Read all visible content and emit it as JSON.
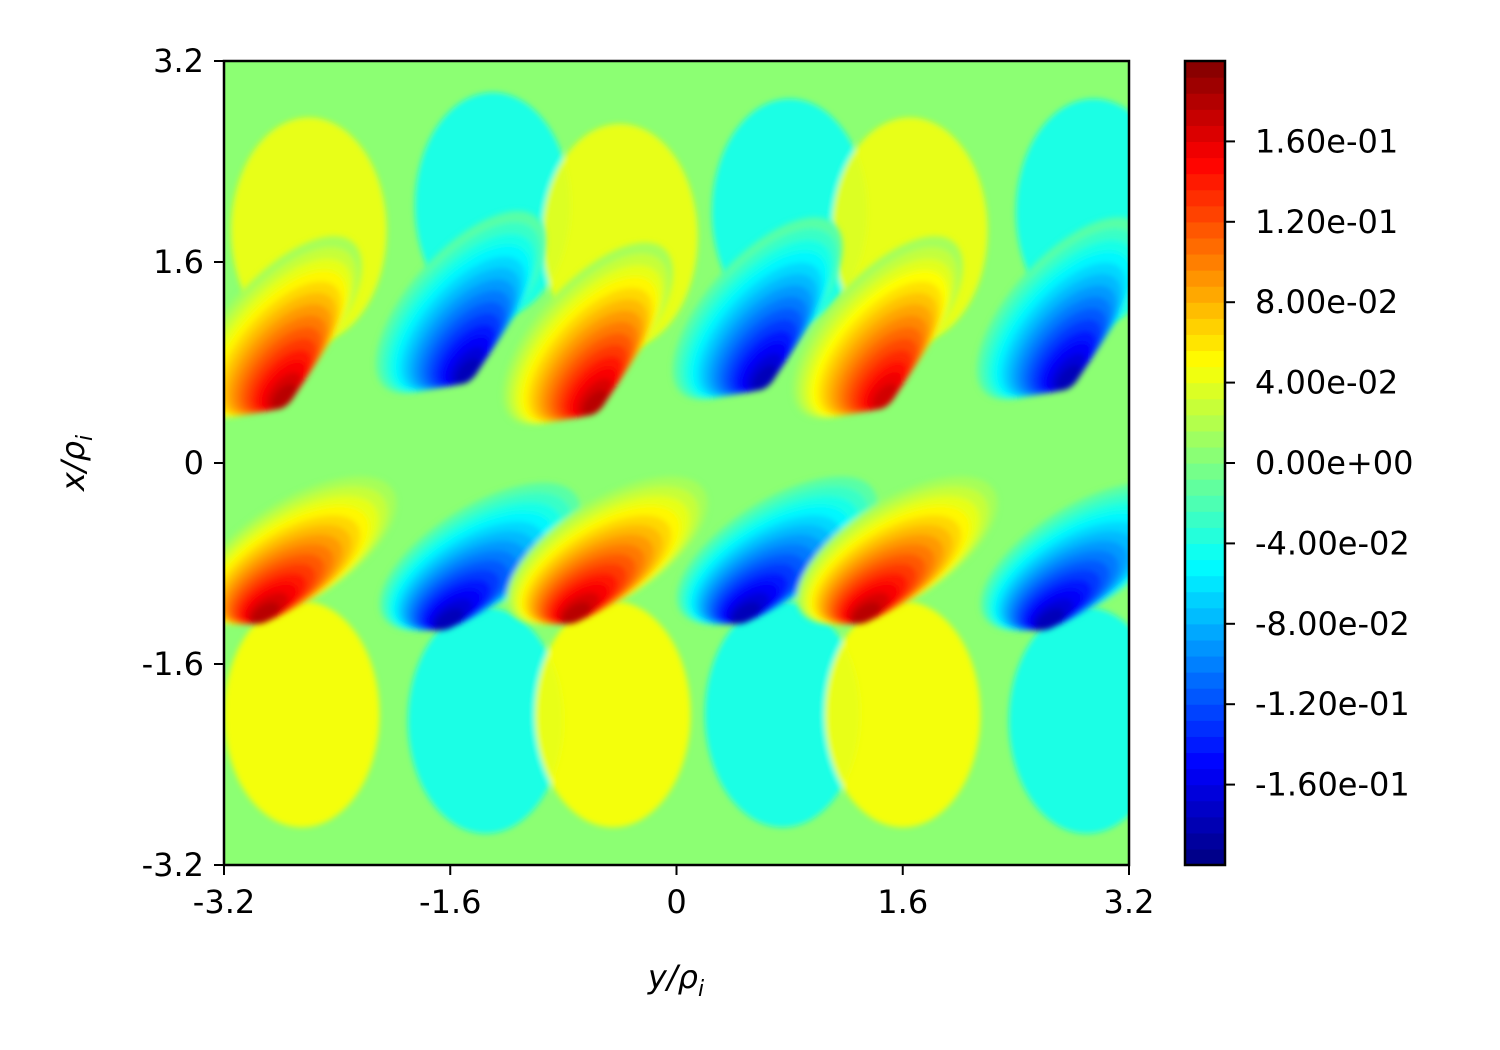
{
  "chart_data": {
    "type": "heatmap",
    "title": "",
    "xlabel": "y/ρ_i",
    "ylabel": "x/ρ_i",
    "xlabel_parts": {
      "main": "y/ρ",
      "sub": "i"
    },
    "ylabel_parts": {
      "main": "x/ρ",
      "sub": "i"
    },
    "xlim": [
      -3.2,
      3.2
    ],
    "ylim": [
      -3.2,
      3.2
    ],
    "x_ticks": [
      -3.2,
      -1.6,
      0,
      1.6,
      3.2
    ],
    "x_tick_labels": [
      "-3.2",
      "-1.6",
      "0",
      "1.6",
      "3.2"
    ],
    "y_ticks": [
      -3.2,
      -1.6,
      0,
      1.6,
      3.2
    ],
    "y_tick_labels": [
      "-3.2",
      "-1.6",
      "0",
      "1.6",
      "3.2"
    ],
    "colormap": "jet",
    "colorbar": {
      "vmin": -0.2,
      "vmax": 0.2,
      "ticks": [
        0.16,
        0.12,
        0.08,
        0.04,
        0,
        -0.04,
        -0.08,
        -0.12,
        -0.16
      ],
      "tick_labels": [
        "1.60e-01",
        "1.20e-01",
        "8.00e-02",
        "4.00e-02",
        "0.00e+00",
        "-4.00e-02",
        "-8.00e-02",
        "-1.20e-01",
        "-1.60e-01"
      ],
      "placement": "right"
    },
    "grid": false,
    "extrema": {
      "upper_band": [
        {
          "y": -2.8,
          "x": 0.8,
          "value": 0.19
        },
        {
          "y": -1.5,
          "x": 1.0,
          "value": -0.19
        },
        {
          "y": -0.6,
          "x": 0.75,
          "value": 0.19
        },
        {
          "y": 0.6,
          "x": 0.95,
          "value": -0.19
        },
        {
          "y": 1.45,
          "x": 0.8,
          "value": 0.18
        },
        {
          "y": 2.75,
          "x": 0.95,
          "value": -0.19
        }
      ],
      "lower_band": [
        {
          "y": -2.8,
          "x": -0.95,
          "value": 0.19
        },
        {
          "y": -1.5,
          "x": -1.0,
          "value": -0.19
        },
        {
          "y": -0.6,
          "x": -0.95,
          "value": 0.19
        },
        {
          "y": 0.6,
          "x": -0.95,
          "value": -0.19
        },
        {
          "y": 1.45,
          "x": -0.95,
          "value": 0.19
        },
        {
          "y": 2.75,
          "x": -1.0,
          "value": -0.19
        }
      ]
    }
  }
}
